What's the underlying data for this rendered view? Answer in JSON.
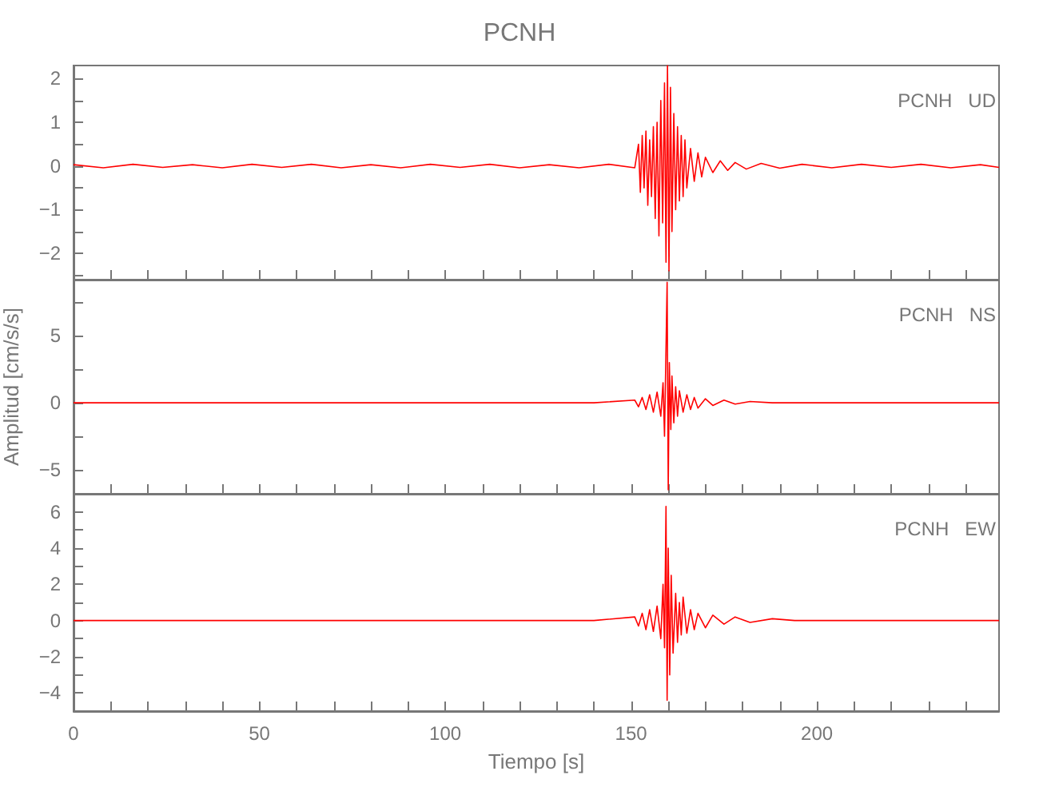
{
  "chart_data": [
    {
      "type": "line",
      "title": "PCNH",
      "annotations": [
        "PCNH   UD"
      ],
      "color": "#ff0000",
      "tick_labels": "y",
      "xlim": [
        0,
        249
      ],
      "xticks": [
        0,
        {
          "value": 10,
          "label": null
        },
        {
          "value": 20,
          "label": null
        },
        {
          "value": 30,
          "label": null
        },
        {
          "value": 40,
          "label": null
        },
        50,
        {
          "value": 60,
          "label": null
        },
        {
          "value": 70,
          "label": null
        },
        {
          "value": 80,
          "label": null
        },
        {
          "value": 90,
          "label": null
        },
        100,
        {
          "value": 110,
          "label": null
        },
        {
          "value": 120,
          "label": null
        },
        {
          "value": 130,
          "label": null
        },
        {
          "value": 140,
          "label": null
        },
        150,
        {
          "value": 160,
          "label": null
        },
        {
          "value": 170,
          "label": null
        },
        {
          "value": 180,
          "label": null
        },
        {
          "value": 190,
          "label": null
        },
        200,
        {
          "value": 210,
          "label": null
        },
        {
          "value": 220,
          "label": null
        },
        {
          "value": 230,
          "label": null
        },
        {
          "value": 240,
          "label": null
        }
      ],
      "ylim": [
        -2.6,
        2.3
      ],
      "yticks": [
        {
          "value": -2.5,
          "label": null
        },
        -2,
        {
          "value": -1.5,
          "label": null
        },
        -1,
        {
          "value": -0.5,
          "label": null
        },
        0,
        {
          "value": 0.5,
          "label": null
        },
        1,
        {
          "value": 1.5,
          "label": null
        },
        2
      ],
      "x": [
        0,
        8,
        16,
        24,
        32,
        40,
        48,
        56,
        64,
        72,
        80,
        88,
        96,
        104,
        112,
        120,
        128,
        136,
        144,
        151,
        152,
        152.5,
        153,
        153.5,
        154,
        154.5,
        155,
        155.5,
        156,
        156.5,
        157,
        157.5,
        158,
        158.5,
        159,
        159.4,
        159.8,
        160.2,
        160.6,
        161,
        161.5,
        162,
        162.5,
        163,
        163.5,
        164,
        164.5,
        165,
        166,
        167,
        168,
        169,
        170,
        172,
        174,
        176,
        178,
        181,
        185,
        190,
        196,
        204,
        212,
        220,
        228,
        236,
        244,
        249
      ],
      "values": [
        0.03,
        -0.04,
        0.04,
        -0.03,
        0.03,
        -0.04,
        0.04,
        -0.03,
        0.04,
        -0.04,
        0.03,
        -0.04,
        0.04,
        -0.03,
        0.04,
        -0.04,
        0.03,
        -0.04,
        0.04,
        -0.04,
        0.5,
        -0.6,
        0.7,
        -0.5,
        0.8,
        -0.9,
        0.6,
        -0.7,
        0.9,
        -1.2,
        1.0,
        -1.6,
        1.5,
        -1.3,
        1.9,
        -2.2,
        2.3,
        -2.4,
        1.8,
        -1.5,
        1.2,
        -1.0,
        0.9,
        -0.8,
        0.7,
        -0.7,
        0.6,
        -0.5,
        0.4,
        -0.35,
        0.3,
        -0.25,
        0.2,
        -0.15,
        0.12,
        -0.1,
        0.08,
        -0.07,
        0.06,
        -0.05,
        0.04,
        -0.04,
        0.04,
        -0.03,
        0.04,
        -0.04,
        0.03,
        -0.03
      ]
    },
    {
      "type": "line",
      "ylabel": "Amplitud [cm/s/s]",
      "annotations": [
        "PCNH   NS"
      ],
      "color": "#ff0000",
      "tick_labels": "y",
      "xlim": [
        0,
        249
      ],
      "xticks": [
        0,
        {
          "value": 10,
          "label": null
        },
        {
          "value": 20,
          "label": null
        },
        {
          "value": 30,
          "label": null
        },
        {
          "value": 40,
          "label": null
        },
        50,
        {
          "value": 60,
          "label": null
        },
        {
          "value": 70,
          "label": null
        },
        {
          "value": 80,
          "label": null
        },
        {
          "value": 90,
          "label": null
        },
        100,
        {
          "value": 110,
          "label": null
        },
        {
          "value": 120,
          "label": null
        },
        {
          "value": 130,
          "label": null
        },
        {
          "value": 140,
          "label": null
        },
        150,
        {
          "value": 160,
          "label": null
        },
        {
          "value": 170,
          "label": null
        },
        {
          "value": 180,
          "label": null
        },
        {
          "value": 190,
          "label": null
        },
        200,
        {
          "value": 210,
          "label": null
        },
        {
          "value": 220,
          "label": null
        },
        {
          "value": 230,
          "label": null
        },
        {
          "value": 240,
          "label": null
        }
      ],
      "ylim": [
        -6.8,
        9.2
      ],
      "yticks": [
        -5,
        {
          "value": -2.5,
          "label": null
        },
        0,
        {
          "value": 2.5,
          "label": null
        },
        5,
        {
          "value": 7.5,
          "label": null
        }
      ],
      "x": [
        0,
        20,
        40,
        60,
        80,
        100,
        120,
        140,
        151,
        152,
        153,
        154,
        155,
        156,
        157,
        158,
        158.6,
        159,
        159.4,
        159.7,
        160,
        160.3,
        160.7,
        161,
        161.5,
        162,
        162.5,
        163,
        164,
        165,
        166,
        167,
        168,
        170,
        172,
        175,
        178,
        182,
        188,
        200,
        220,
        249
      ],
      "values": [
        0,
        0,
        0,
        0,
        0,
        0,
        0,
        0,
        0.2,
        -0.3,
        0.4,
        -0.5,
        0.6,
        -0.7,
        0.8,
        -1.0,
        1.5,
        -2.5,
        4.0,
        9.0,
        -6.5,
        3.0,
        -2.0,
        2.0,
        -1.5,
        1.2,
        -1.0,
        0.9,
        -0.7,
        0.6,
        -0.5,
        0.4,
        -0.4,
        0.3,
        -0.2,
        0.2,
        -0.1,
        0.1,
        0,
        0,
        0,
        0
      ]
    },
    {
      "type": "line",
      "xlabel": "Tiempo [s]",
      "annotations": [
        "PCNH   EW"
      ],
      "color": "#ff0000",
      "xlim": [
        0,
        249
      ],
      "xticks": [
        0,
        {
          "value": 10,
          "label": null
        },
        {
          "value": 20,
          "label": null
        },
        {
          "value": 30,
          "label": null
        },
        {
          "value": 40,
          "label": null
        },
        50,
        {
          "value": 60,
          "label": null
        },
        {
          "value": 70,
          "label": null
        },
        {
          "value": 80,
          "label": null
        },
        {
          "value": 90,
          "label": null
        },
        100,
        {
          "value": 110,
          "label": null
        },
        {
          "value": 120,
          "label": null
        },
        {
          "value": 130,
          "label": null
        },
        {
          "value": 140,
          "label": null
        },
        150,
        {
          "value": 160,
          "label": null
        },
        {
          "value": 170,
          "label": null
        },
        {
          "value": 180,
          "label": null
        },
        {
          "value": 190,
          "label": null
        },
        200,
        {
          "value": 210,
          "label": null
        },
        {
          "value": 220,
          "label": null
        },
        {
          "value": 230,
          "label": null
        },
        {
          "value": 240,
          "label": null
        }
      ],
      "ylim": [
        -5,
        7
      ],
      "yticks": [
        -4,
        {
          "value": -3,
          "label": null
        },
        -2,
        {
          "value": -1,
          "label": null
        },
        0,
        {
          "value": 1,
          "label": null
        },
        2,
        {
          "value": 3,
          "label": null
        },
        4,
        {
          "value": 5,
          "label": null
        },
        6
      ],
      "x": [
        0,
        20,
        40,
        60,
        80,
        100,
        120,
        140,
        151,
        152,
        153,
        154,
        155,
        156,
        157,
        158,
        158.6,
        159,
        159.4,
        159.7,
        160,
        160.4,
        160.8,
        161.3,
        162,
        162.5,
        163,
        163.5,
        164,
        165,
        166,
        167,
        168,
        170,
        172,
        175,
        178,
        182,
        188,
        194,
        210,
        230,
        249
      ],
      "values": [
        0,
        0,
        0,
        0,
        0,
        0,
        0,
        0,
        0.2,
        -0.3,
        0.4,
        -0.5,
        0.6,
        -0.6,
        0.8,
        -1.0,
        2.0,
        -1.5,
        6.3,
        -4.4,
        4.0,
        -3.0,
        2.5,
        -1.8,
        1.5,
        -1.2,
        1.0,
        -0.8,
        1.3,
        -0.7,
        0.6,
        -0.5,
        0.4,
        -0.4,
        0.3,
        -0.2,
        0.2,
        -0.1,
        0.1,
        0,
        0,
        0,
        0
      ]
    }
  ]
}
